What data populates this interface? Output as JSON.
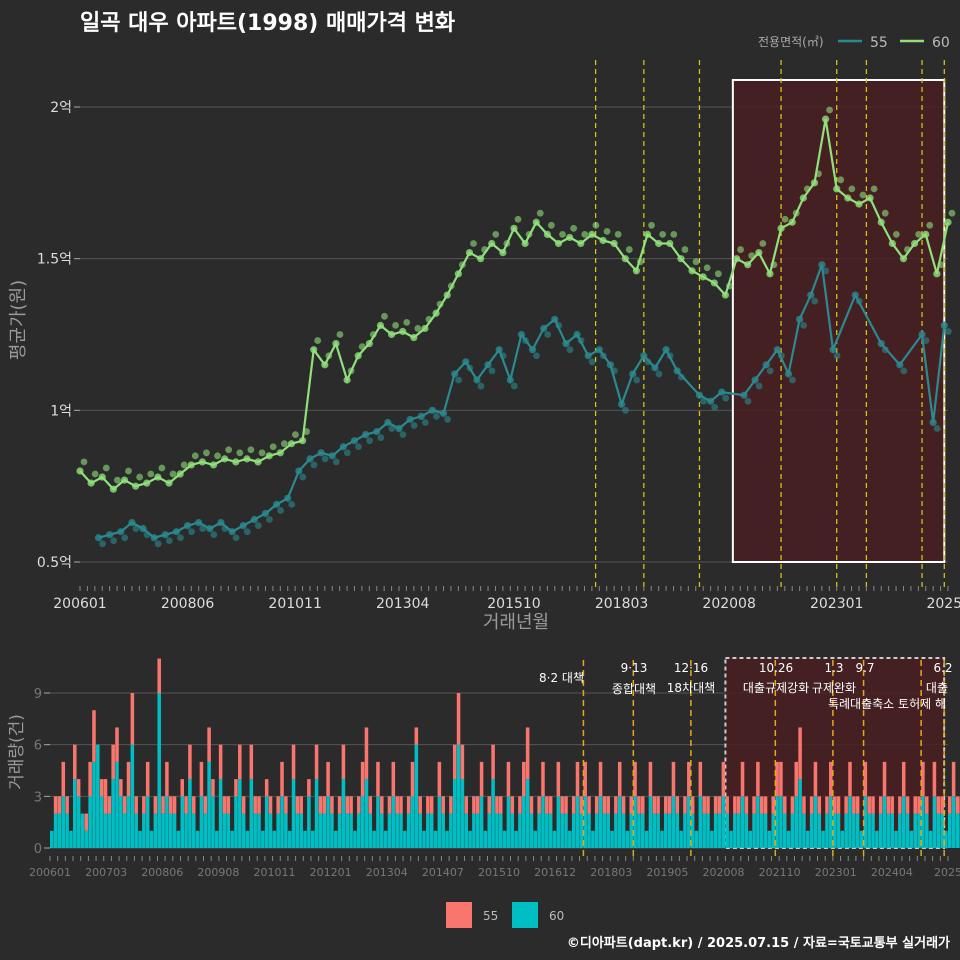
{
  "title": "일곡 대우 아파트(1998) 매매가격 변화",
  "credit": "©디아파트(dapt.kr) / 2025.07.15 / 자료=국토교통부 실거래가",
  "colors": {
    "s55": "#2a8a8f",
    "s60": "#90e07c",
    "bar55": "#f8766d",
    "bar60": "#00bfc4",
    "policy": "#d4c21a",
    "policy_bar": "#e6a817",
    "highlight": "#4a1e22"
  },
  "chart_data": [
    {
      "type": "line",
      "title": "일곡 대우 아파트(1998) 매매가격 변화",
      "xlabel": "거래년월",
      "ylabel": "평균가(원)",
      "legend_title": "전용면적(㎡)",
      "legend_position": "top-right",
      "x_tick_labels": [
        "200601",
        "200806",
        "201011",
        "201304",
        "201510",
        "201803",
        "202008",
        "202301",
        "2025"
      ],
      "x_range": [
        "2006-01",
        "2025-07"
      ],
      "y_ticks": [
        0.5,
        1,
        1.5,
        2
      ],
      "y_tick_labels": [
        "0.5억",
        "1억",
        "1.5억",
        "2억"
      ],
      "y_unit": "억",
      "ylim": [
        0.43,
        2.2
      ],
      "policy_lines": [
        "2017-08",
        "2018-09",
        "2019-12",
        "2021-10",
        "2023-01",
        "2023-09",
        "2024-12",
        "2025-06"
      ],
      "highlight_range": [
        "2020-09",
        "2025-06"
      ],
      "series": [
        {
          "name": "55",
          "points": [
            [
              "2006-06",
              0.58
            ],
            [
              "2006-09",
              0.59
            ],
            [
              "2006-12",
              0.6
            ],
            [
              "2007-03",
              0.63
            ],
            [
              "2007-06",
              0.61
            ],
            [
              "2007-09",
              0.58
            ],
            [
              "2007-12",
              0.59
            ],
            [
              "2008-03",
              0.6
            ],
            [
              "2008-06",
              0.62
            ],
            [
              "2008-09",
              0.63
            ],
            [
              "2008-12",
              0.61
            ],
            [
              "2009-03",
              0.63
            ],
            [
              "2009-06",
              0.6
            ],
            [
              "2009-09",
              0.62
            ],
            [
              "2009-12",
              0.64
            ],
            [
              "2010-03",
              0.66
            ],
            [
              "2010-06",
              0.69
            ],
            [
              "2010-09",
              0.71
            ],
            [
              "2010-12",
              0.8
            ],
            [
              "2011-03",
              0.84
            ],
            [
              "2011-06",
              0.86
            ],
            [
              "2011-09",
              0.85
            ],
            [
              "2011-12",
              0.88
            ],
            [
              "2012-03",
              0.9
            ],
            [
              "2012-06",
              0.92
            ],
            [
              "2012-09",
              0.93
            ],
            [
              "2012-12",
              0.96
            ],
            [
              "2013-03",
              0.94
            ],
            [
              "2013-06",
              0.97
            ],
            [
              "2013-09",
              0.98
            ],
            [
              "2013-12",
              1.0
            ],
            [
              "2014-03",
              0.99
            ],
            [
              "2014-06",
              1.12
            ],
            [
              "2014-09",
              1.16
            ],
            [
              "2014-12",
              1.1
            ],
            [
              "2015-03",
              1.15
            ],
            [
              "2015-06",
              1.2
            ],
            [
              "2015-09",
              1.1
            ],
            [
              "2015-12",
              1.25
            ],
            [
              "2016-03",
              1.2
            ],
            [
              "2016-06",
              1.27
            ],
            [
              "2016-09",
              1.3
            ],
            [
              "2016-12",
              1.22
            ],
            [
              "2017-03",
              1.25
            ],
            [
              "2017-06",
              1.18
            ],
            [
              "2017-09",
              1.2
            ],
            [
              "2017-12",
              1.15
            ],
            [
              "2018-03",
              1.02
            ],
            [
              "2018-06",
              1.12
            ],
            [
              "2018-09",
              1.18
            ],
            [
              "2018-12",
              1.14
            ],
            [
              "2019-03",
              1.2
            ],
            [
              "2019-06",
              1.13
            ],
            [
              "2019-12",
              1.05
            ],
            [
              "2020-03",
              1.03
            ],
            [
              "2020-06",
              1.06
            ],
            [
              "2020-12",
              1.05
            ],
            [
              "2021-03",
              1.1
            ],
            [
              "2021-06",
              1.15
            ],
            [
              "2021-09",
              1.2
            ],
            [
              "2021-12",
              1.12
            ],
            [
              "2022-03",
              1.3
            ],
            [
              "2022-06",
              1.38
            ],
            [
              "2022-09",
              1.48
            ],
            [
              "2022-12",
              1.2
            ],
            [
              "2023-06",
              1.38
            ],
            [
              "2024-01",
              1.22
            ],
            [
              "2024-06",
              1.15
            ],
            [
              "2024-12",
              1.25
            ],
            [
              "2025-03",
              0.96
            ],
            [
              "2025-06",
              1.28
            ]
          ]
        },
        {
          "name": "60",
          "points": [
            [
              "2006-01",
              0.8
            ],
            [
              "2006-04",
              0.76
            ],
            [
              "2006-07",
              0.78
            ],
            [
              "2006-10",
              0.74
            ],
            [
              "2007-01",
              0.77
            ],
            [
              "2007-04",
              0.75
            ],
            [
              "2007-07",
              0.76
            ],
            [
              "2007-10",
              0.78
            ],
            [
              "2008-01",
              0.76
            ],
            [
              "2008-04",
              0.79
            ],
            [
              "2008-07",
              0.82
            ],
            [
              "2008-10",
              0.83
            ],
            [
              "2009-01",
              0.82
            ],
            [
              "2009-04",
              0.84
            ],
            [
              "2009-07",
              0.83
            ],
            [
              "2009-10",
              0.84
            ],
            [
              "2010-01",
              0.83
            ],
            [
              "2010-04",
              0.85
            ],
            [
              "2010-07",
              0.86
            ],
            [
              "2010-10",
              0.89
            ],
            [
              "2011-01",
              0.9
            ],
            [
              "2011-04",
              1.2
            ],
            [
              "2011-07",
              1.15
            ],
            [
              "2011-10",
              1.22
            ],
            [
              "2012-01",
              1.1
            ],
            [
              "2012-04",
              1.18
            ],
            [
              "2012-07",
              1.22
            ],
            [
              "2012-10",
              1.28
            ],
            [
              "2013-01",
              1.25
            ],
            [
              "2013-04",
              1.26
            ],
            [
              "2013-07",
              1.24
            ],
            [
              "2013-10",
              1.27
            ],
            [
              "2014-01",
              1.32
            ],
            [
              "2014-04",
              1.38
            ],
            [
              "2014-07",
              1.45
            ],
            [
              "2014-10",
              1.52
            ],
            [
              "2015-01",
              1.5
            ],
            [
              "2015-04",
              1.55
            ],
            [
              "2015-07",
              1.52
            ],
            [
              "2015-10",
              1.6
            ],
            [
              "2016-01",
              1.55
            ],
            [
              "2016-04",
              1.62
            ],
            [
              "2016-07",
              1.58
            ],
            [
              "2016-10",
              1.55
            ],
            [
              "2017-01",
              1.57
            ],
            [
              "2017-04",
              1.55
            ],
            [
              "2017-07",
              1.58
            ],
            [
              "2017-10",
              1.56
            ],
            [
              "2018-01",
              1.55
            ],
            [
              "2018-04",
              1.5
            ],
            [
              "2018-07",
              1.46
            ],
            [
              "2018-10",
              1.58
            ],
            [
              "2019-01",
              1.55
            ],
            [
              "2019-04",
              1.55
            ],
            [
              "2019-07",
              1.5
            ],
            [
              "2019-10",
              1.46
            ],
            [
              "2020-01",
              1.44
            ],
            [
              "2020-04",
              1.42
            ],
            [
              "2020-07",
              1.38
            ],
            [
              "2020-10",
              1.5
            ],
            [
              "2021-01",
              1.48
            ],
            [
              "2021-04",
              1.52
            ],
            [
              "2021-07",
              1.45
            ],
            [
              "2021-10",
              1.6
            ],
            [
              "2022-01",
              1.62
            ],
            [
              "2022-04",
              1.7
            ],
            [
              "2022-07",
              1.75
            ],
            [
              "2022-10",
              1.96
            ],
            [
              "2023-01",
              1.73
            ],
            [
              "2023-04",
              1.7
            ],
            [
              "2023-07",
              1.68
            ],
            [
              "2023-10",
              1.7
            ],
            [
              "2024-01",
              1.62
            ],
            [
              "2024-04",
              1.55
            ],
            [
              "2024-07",
              1.5
            ],
            [
              "2024-10",
              1.55
            ],
            [
              "2025-01",
              1.58
            ],
            [
              "2025-04",
              1.45
            ],
            [
              "2025-07",
              1.62
            ]
          ]
        }
      ]
    },
    {
      "type": "bar",
      "ylabel": "거래량(건)",
      "x_tick_labels": [
        "200601",
        "200703",
        "200806",
        "200908",
        "201011",
        "201201",
        "201304",
        "201407",
        "201510",
        "201612",
        "201803",
        "201905",
        "202008",
        "202110",
        "202301",
        "202404",
        "2025"
      ],
      "y_ticks": [
        0,
        3,
        6,
        9
      ],
      "ylim": [
        0,
        11
      ],
      "stacked": true,
      "series_names": [
        "55",
        "60"
      ],
      "monthly_counts_55": [
        0,
        1,
        1,
        2,
        1,
        0,
        2,
        1,
        0,
        1,
        2,
        3,
        0,
        1,
        2,
        1,
        2,
        2,
        1,
        1,
        2,
        3,
        1,
        0,
        1,
        2,
        0,
        1,
        2,
        1,
        2,
        1,
        1,
        0,
        1,
        1,
        2,
        1,
        0,
        2,
        1,
        2,
        1,
        0,
        2,
        1,
        1,
        0,
        1,
        2,
        1,
        0,
        2,
        1,
        1,
        0,
        1,
        1,
        0,
        1,
        2,
        1,
        0,
        2,
        1,
        1,
        0,
        1,
        0,
        2,
        1,
        1,
        2,
        1,
        0,
        1,
        2,
        1,
        1,
        0,
        1,
        2,
        3,
        1,
        0,
        2,
        1,
        0,
        1,
        2,
        1,
        1,
        0,
        1,
        2,
        1,
        1,
        0,
        1,
        1,
        0,
        2,
        1,
        0,
        1,
        2,
        3,
        2,
        1,
        0,
        1,
        1,
        2,
        0,
        1,
        2,
        1,
        1,
        0,
        2,
        1,
        0,
        1,
        2,
        3,
        1,
        0,
        1,
        2,
        1,
        1,
        0,
        2,
        1,
        1,
        0,
        1,
        2,
        1,
        2,
        1,
        0,
        1,
        2,
        1,
        1,
        0,
        1,
        2,
        1,
        0,
        1,
        2,
        1,
        1,
        0,
        2,
        1,
        1,
        0,
        1,
        1,
        2,
        1,
        0,
        1,
        2,
        1,
        0,
        2,
        1,
        1,
        0,
        1,
        1,
        2,
        1,
        0,
        1,
        1,
        2,
        1,
        0,
        1,
        2,
        1,
        1,
        0,
        1,
        2,
        2,
        1,
        0,
        1,
        2,
        3,
        1,
        0,
        1,
        2,
        1,
        0,
        1,
        2,
        1,
        1,
        0,
        1,
        2,
        1,
        1,
        0,
        2,
        1,
        1,
        0,
        1,
        2,
        1,
        1,
        0,
        1,
        2,
        1,
        0,
        1,
        1,
        2,
        1,
        0,
        2,
        1,
        1,
        0,
        1,
        2,
        1,
        1,
        0,
        1
      ],
      "monthly_counts_60": [
        1,
        2,
        2,
        3,
        2,
        1,
        4,
        3,
        2,
        1,
        3,
        5,
        6,
        3,
        2,
        2,
        4,
        5,
        3,
        2,
        3,
        6,
        2,
        1,
        2,
        3,
        1,
        2,
        9,
        2,
        3,
        2,
        2,
        1,
        3,
        2,
        4,
        2,
        1,
        3,
        2,
        5,
        3,
        1,
        4,
        2,
        2,
        1,
        3,
        4,
        2,
        1,
        4,
        2,
        2,
        1,
        3,
        2,
        1,
        2,
        3,
        2,
        1,
        4,
        2,
        2,
        1,
        3,
        1,
        4,
        2,
        2,
        3,
        2,
        1,
        2,
        4,
        2,
        2,
        1,
        2,
        3,
        4,
        2,
        1,
        3,
        2,
        1,
        2,
        3,
        2,
        2,
        1,
        2,
        3,
        6,
        2,
        1,
        2,
        2,
        1,
        3,
        2,
        1,
        2,
        4,
        6,
        4,
        2,
        1,
        2,
        2,
        3,
        1,
        2,
        4,
        2,
        2,
        1,
        3,
        2,
        1,
        2,
        3,
        4,
        2,
        1,
        2,
        3,
        2,
        2,
        1,
        3,
        2,
        2,
        1,
        2,
        3,
        2,
        3,
        2,
        1,
        2,
        3,
        2,
        2,
        1,
        2,
        3,
        2,
        1,
        2,
        3,
        2,
        2,
        1,
        3,
        2,
        2,
        1,
        2,
        2,
        3,
        2,
        1,
        2,
        3,
        2,
        1,
        3,
        2,
        2,
        1,
        2,
        2,
        3,
        2,
        1,
        2,
        2,
        3,
        2,
        1,
        2,
        3,
        2,
        2,
        1,
        2,
        3,
        3,
        2,
        1,
        2,
        3,
        4,
        2,
        1,
        2,
        3,
        2,
        1,
        2,
        3,
        2,
        2,
        1,
        2,
        3,
        2,
        2,
        1,
        3,
        2,
        2,
        1,
        2,
        3,
        2,
        2,
        1,
        2,
        3,
        2,
        1,
        2,
        2,
        3,
        2,
        1,
        3,
        2,
        2,
        1,
        2,
        3,
        2,
        2,
        1,
        2
      ],
      "policy_lines": [
        "2017-08",
        "2018-09",
        "2019-12",
        "2021-10",
        "2023-01",
        "2023-09",
        "2024-12",
        "2025-06"
      ],
      "policy_labels": [
        "8·2 대책",
        "9·13",
        "종합대책",
        "12·16",
        "18차대책",
        "10.26",
        "대출규제강화",
        "1.3",
        "규제완화",
        "9.7",
        "특례대출축소 토허제 해",
        "6.2",
        "대출"
      ],
      "highlight_range": [
        "2020-09",
        "2025-06"
      ]
    }
  ]
}
